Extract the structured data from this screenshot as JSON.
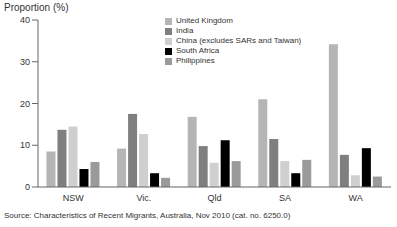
{
  "chart_data": {
    "type": "bar",
    "y_label": "Proportion (%)",
    "annotations": [
      "Source: Characteristics of Recent Migrants, Australia, Nov 2010 (cat. no. 6250.0)"
    ],
    "categories": [
      "NSW",
      "Vic.",
      "Qld",
      "SA",
      "WA"
    ],
    "series": [
      {
        "name": "United Kingdom",
        "color": "#b5b5b5",
        "values": [
          8.5,
          9.2,
          16.8,
          21,
          34.2
        ]
      },
      {
        "name": "India",
        "color": "#7f7f7f",
        "values": [
          13.7,
          17.5,
          9.8,
          11.5,
          7.7
        ]
      },
      {
        "name": "China (excludes SARs and Taiwan)",
        "color": "#cfcfcf",
        "values": [
          14.5,
          12.7,
          5.8,
          6.2,
          2.8
        ]
      },
      {
        "name": "South Africa",
        "color": "#000000",
        "values": [
          4.3,
          3.3,
          11.2,
          3.3,
          9.3
        ]
      },
      {
        "name": "Philippines",
        "color": "#9a9a9a",
        "values": [
          6,
          2.2,
          6.2,
          6.5,
          2.5
        ]
      }
    ],
    "ylim": [
      0,
      40
    ],
    "yticks": [
      0,
      10,
      20,
      30,
      40
    ],
    "legend": "top"
  }
}
